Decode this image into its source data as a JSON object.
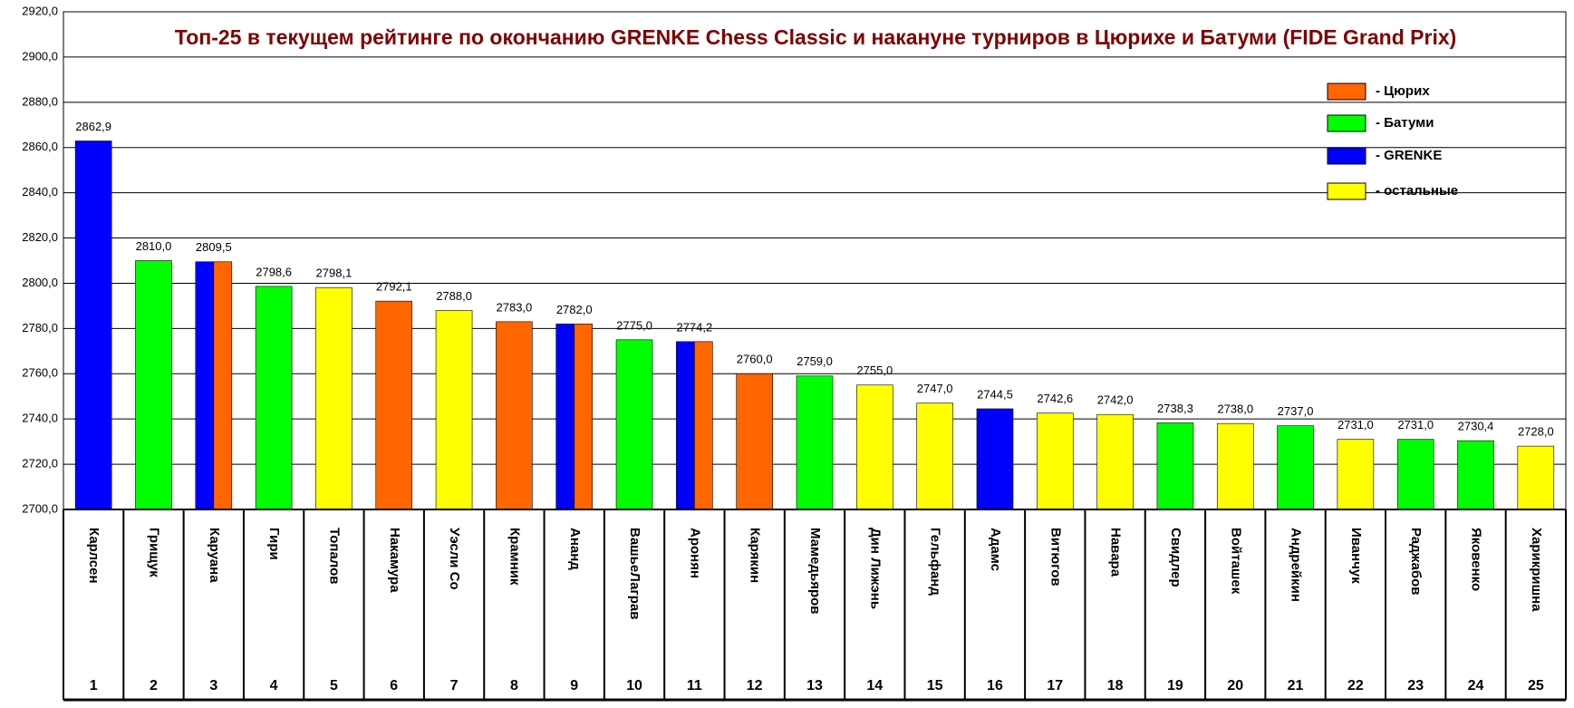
{
  "chart_data": {
    "type": "bar",
    "title": "Топ-25 в текущем рейтинге по окончанию GRENKE Chess Classic и накануне турниров в Цюрихе и Батуми (FIDE Grand Prix)",
    "categories": [
      "Карлсен",
      "Грищук",
      "Каруана",
      "Гири",
      "Топалов",
      "Накамура",
      "Уэсли Со",
      "Крамник",
      "Ананд",
      "ВашьеЛаграв",
      "Аронян",
      "Карякин",
      "Мамедьяров",
      "Дин Лижэнь",
      "Гельфанд",
      "Адамс",
      "Витюгов",
      "Навара",
      "Свидлер",
      "Войташек",
      "Андрейкин",
      "Иванчук",
      "Раджабов",
      "Яковенко",
      "Харикришна"
    ],
    "ranks": [
      1,
      2,
      3,
      4,
      5,
      6,
      7,
      8,
      9,
      10,
      11,
      12,
      13,
      14,
      15,
      16,
      17,
      18,
      19,
      20,
      21,
      22,
      23,
      24,
      25
    ],
    "values": [
      2862.9,
      2810.0,
      2809.5,
      2798.6,
      2798.1,
      2792.1,
      2788.0,
      2783.0,
      2782.0,
      2775.0,
      2774.2,
      2760.0,
      2759.0,
      2755.0,
      2747.0,
      2744.5,
      2742.6,
      2742.0,
      2738.3,
      2738.0,
      2737.0,
      2731.0,
      2731.0,
      2730.4,
      2728.0
    ],
    "value_labels": [
      "2862,9",
      "2810,0",
      "2809,5",
      "2798,6",
      "2798,1",
      "2792,1",
      "2788,0",
      "2783,0",
      "2782,0",
      "2775,0",
      "2774,2",
      "2760,0",
      "2759,0",
      "2755,0",
      "2747,0",
      "2744,5",
      "2742,6",
      "2742,0",
      "2738,3",
      "2738,0",
      "2737,0",
      "2731,0",
      "2731,0",
      "2730,4",
      "2728,0"
    ],
    "bar_colors": [
      [
        "#0000ff"
      ],
      [
        "#00ff00"
      ],
      [
        "#0000ff",
        "#ff6600"
      ],
      [
        "#00ff00"
      ],
      [
        "#ffff00"
      ],
      [
        "#ff6600"
      ],
      [
        "#ffff00"
      ],
      [
        "#ff6600"
      ],
      [
        "#0000ff",
        "#ff6600"
      ],
      [
        "#00ff00"
      ],
      [
        "#0000ff",
        "#ff6600"
      ],
      [
        "#ff6600"
      ],
      [
        "#00ff00"
      ],
      [
        "#ffff00"
      ],
      [
        "#ffff00"
      ],
      [
        "#0000ff"
      ],
      [
        "#ffff00"
      ],
      [
        "#ffff00"
      ],
      [
        "#00ff00"
      ],
      [
        "#ffff00"
      ],
      [
        "#00ff00"
      ],
      [
        "#ffff00"
      ],
      [
        "#00ff00"
      ],
      [
        "#00ff00"
      ],
      [
        "#ffff00"
      ]
    ],
    "legend": [
      {
        "name": "- Цюрих",
        "color": "#ff6600"
      },
      {
        "name": "- Батуми",
        "color": "#00ff00"
      },
      {
        "name": "- GRENKE",
        "color": "#0000ff"
      },
      {
        "name": "- остальные",
        "color": "#ffff00"
      }
    ],
    "ylim": [
      2700,
      2920
    ],
    "yticks": [
      {
        "value": 2700,
        "label": "2700,0"
      },
      {
        "value": 2720,
        "label": "2720,0"
      },
      {
        "value": 2740,
        "label": "2740,0"
      },
      {
        "value": 2760,
        "label": "2760,0"
      },
      {
        "value": 2780,
        "label": "2780,0"
      },
      {
        "value": 2800,
        "label": "2800,0"
      },
      {
        "value": 2820,
        "label": "2820,0"
      },
      {
        "value": 2840,
        "label": "2840,0"
      },
      {
        "value": 2860,
        "label": "2860,0"
      },
      {
        "value": 2880,
        "label": "2880,0"
      },
      {
        "value": 2900,
        "label": "2900,0"
      },
      {
        "value": 2920,
        "label": "2920,0"
      }
    ],
    "grid": true
  }
}
